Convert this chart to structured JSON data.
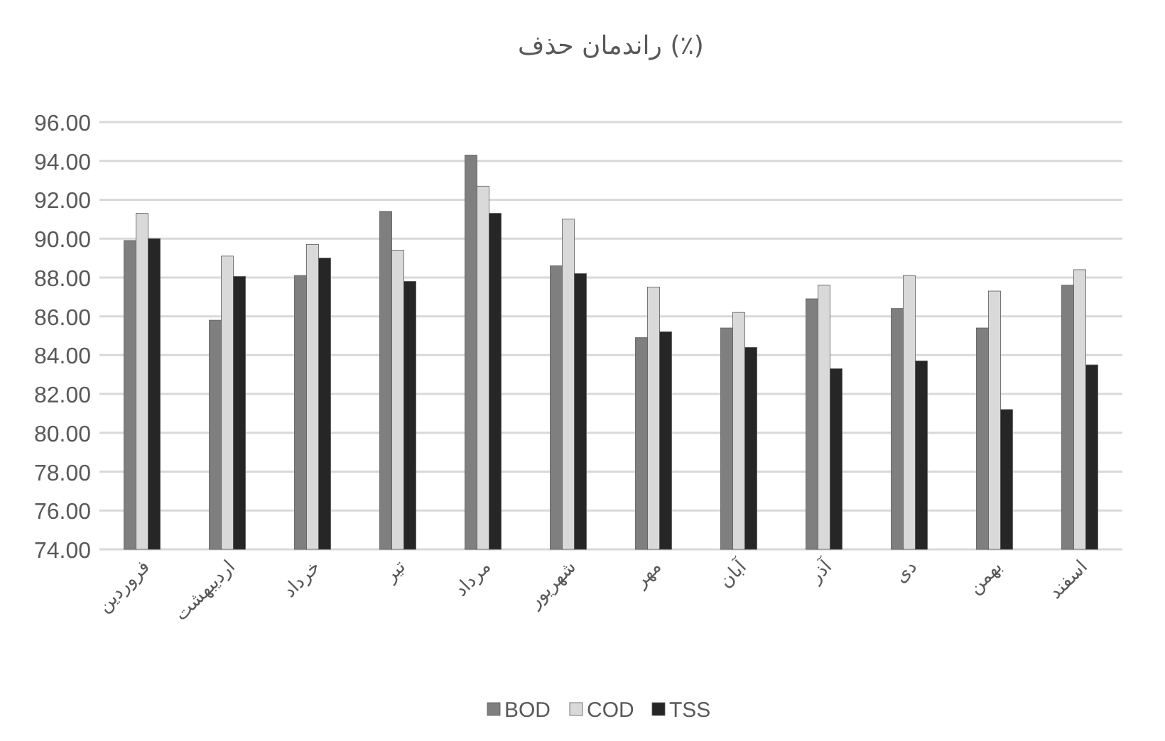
{
  "chart_data": {
    "type": "bar",
    "title": "راندمان حذف (٪)",
    "categories": [
      "فروردین",
      "اردیبهشت",
      "خرداد",
      "تیر",
      "مرداد",
      "شهریور",
      "مهر",
      "آبان",
      "آذر",
      "دی",
      "بهمن",
      "اسفند"
    ],
    "series": [
      {
        "name": "BOD",
        "color": "#7f7f7f",
        "values": [
          89.9,
          85.8,
          88.1,
          91.4,
          94.3,
          88.6,
          84.9,
          85.4,
          86.9,
          86.4,
          85.4,
          87.6
        ]
      },
      {
        "name": "COD",
        "color": "#d9d9d9",
        "values": [
          91.3,
          89.1,
          89.7,
          89.4,
          92.7,
          91.0,
          87.5,
          86.2,
          87.6,
          88.1,
          87.3,
          88.4
        ]
      },
      {
        "name": "TSS",
        "color": "#262626",
        "values": [
          90.0,
          88.05,
          89.0,
          87.8,
          91.3,
          88.2,
          85.2,
          84.4,
          83.3,
          83.7,
          81.2,
          83.5
        ]
      }
    ],
    "ylim": [
      74,
      96
    ],
    "yticks": [
      {
        "value": 74,
        "label": "74.00"
      },
      {
        "value": 76,
        "label": "76.00"
      },
      {
        "value": 78,
        "label": "78.00"
      },
      {
        "value": 80,
        "label": "80.00"
      },
      {
        "value": 82,
        "label": "82.00"
      },
      {
        "value": 84,
        "label": "84.00"
      },
      {
        "value": 86,
        "label": "86.00"
      },
      {
        "value": 88,
        "label": "88.00"
      },
      {
        "value": 90,
        "label": "90.00"
      },
      {
        "value": 92,
        "label": "92.00"
      },
      {
        "value": 94,
        "label": "94.00"
      },
      {
        "value": 96,
        "label": "96.00"
      }
    ],
    "grid": "y",
    "legend": "bottom"
  }
}
